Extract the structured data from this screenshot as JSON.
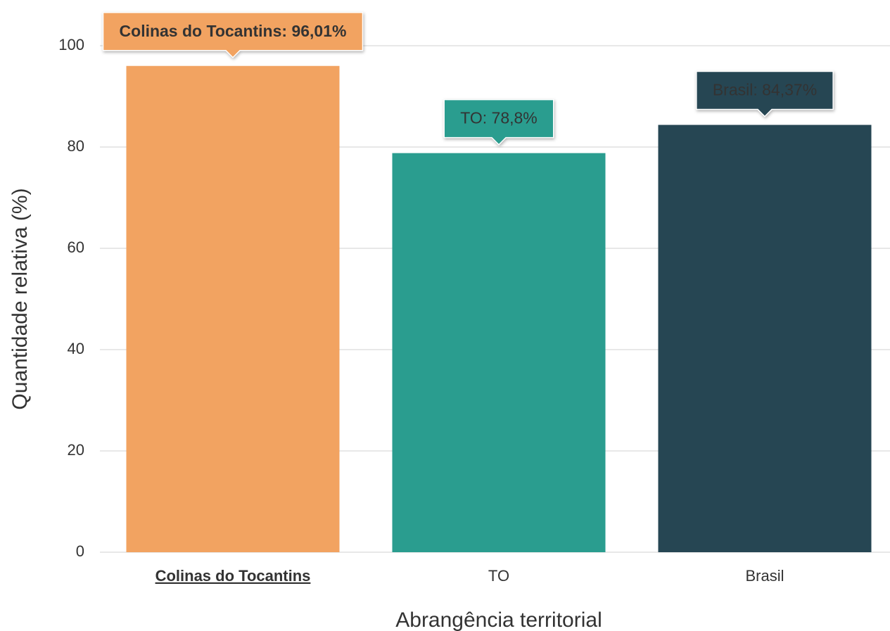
{
  "chart_data": {
    "type": "bar",
    "x_label": "Abrangência territorial",
    "y_label": "Quantidade relativa (%)",
    "categories": [
      "Colinas do Tocantins",
      "TO",
      "Brasil"
    ],
    "values": [
      96.01,
      78.8,
      84.37
    ],
    "value_labels": [
      "Colinas do Tocantins: 96,01%",
      "TO: 78,8%",
      "Brasil: 84,37%"
    ],
    "colors": [
      "#f2a361",
      "#2a9d8f",
      "#264653"
    ],
    "highlight_index": 0,
    "ylim": [
      0,
      100
    ],
    "yticks": [
      0,
      20,
      40,
      60,
      80,
      100
    ],
    "grid": true
  }
}
